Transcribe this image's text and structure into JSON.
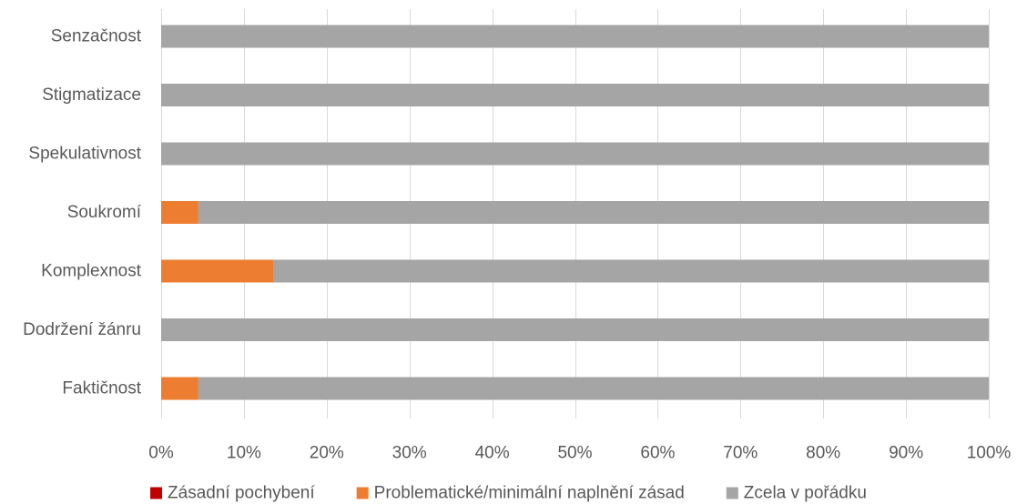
{
  "chart_data": {
    "type": "bar",
    "orientation": "horizontal",
    "stacked": true,
    "percent_stacked": true,
    "categories": [
      "Senzačnost",
      "Stigmatizace",
      "Spekulativnost",
      "Soukromí",
      "Komplexnost",
      "Dodržení žánru",
      "Faktičnost"
    ],
    "series": [
      {
        "name": "Zásadní pochybení",
        "color": "#c00000",
        "values": [
          0,
          0,
          0,
          0,
          0,
          0,
          0
        ]
      },
      {
        "name": "Problematické/minimální naplnění zásad",
        "color": "#ed7d31",
        "values": [
          0,
          0,
          0,
          4.5,
          13.6,
          0,
          4.5
        ]
      },
      {
        "name": "Zcela v pořádku",
        "color": "#a5a5a5",
        "values": [
          100,
          100,
          100,
          95.5,
          86.4,
          100,
          95.5
        ]
      }
    ],
    "x_ticks": [
      "0%",
      "10%",
      "20%",
      "30%",
      "40%",
      "50%",
      "60%",
      "70%",
      "80%",
      "90%",
      "100%"
    ],
    "xlim": [
      0,
      100
    ],
    "grid": "vertical",
    "legend_position": "bottom"
  }
}
